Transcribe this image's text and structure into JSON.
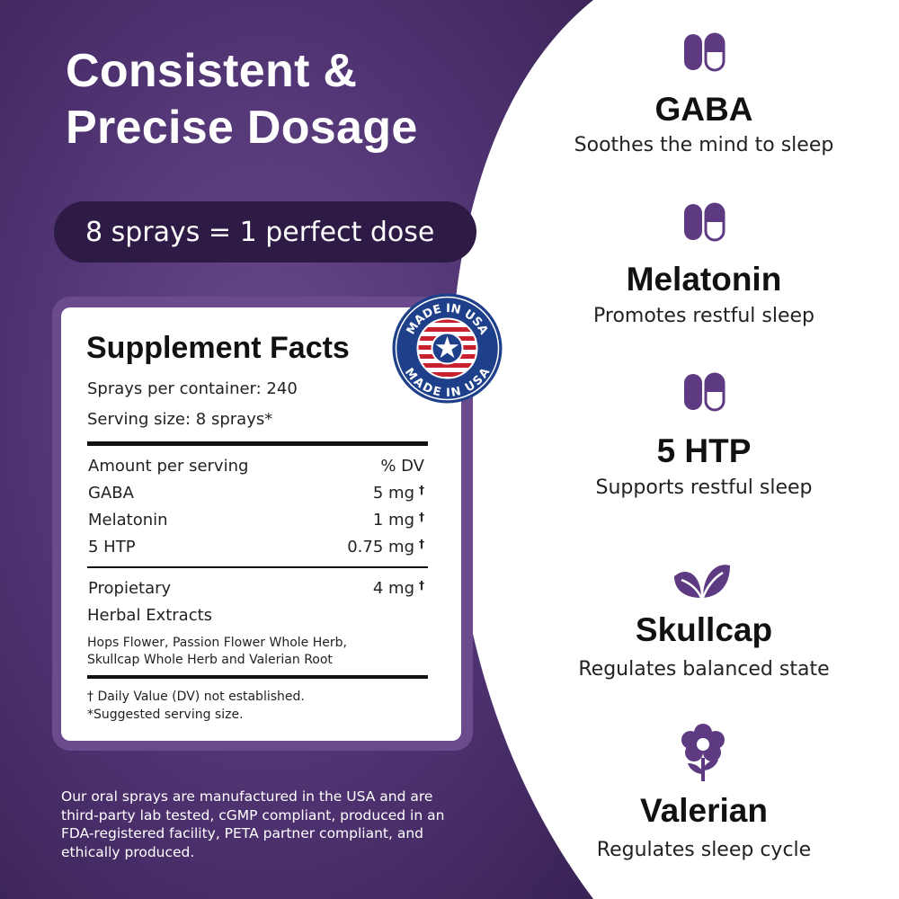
{
  "headline": {
    "line1": "Consistent &",
    "line2": "Precise Dosage"
  },
  "dose_pill": "8 sprays = 1 perfect dose",
  "supplement_facts": {
    "title": "Supplement Facts",
    "sprays_per_container": "Sprays per container: 240",
    "serving_size": "Serving size: 8 sprays*",
    "header": {
      "label": "Amount per serving",
      "value": "% DV"
    },
    "rows": [
      {
        "label": "GABA",
        "value": "5 mg",
        "mark": "†"
      },
      {
        "label": "Melatonin",
        "value": "1 mg",
        "mark": "†"
      },
      {
        "label": "5 HTP",
        "value": "0.75 mg",
        "mark": "†"
      }
    ],
    "proprietary": {
      "line1": "Propietary",
      "line2": "Herbal Extracts",
      "value": "4 mg",
      "mark": "†"
    },
    "extracts_line1": "Hops Flower, Passion Flower Whole Herb,",
    "extracts_line2": "Skullcap Whole Herb and Valerian Root",
    "footnote1": "† Daily Value (DV) not established.",
    "footnote2": "*Suggested serving size."
  },
  "badge_text": "MADE IN USA",
  "bottom_text": {
    "line1": "Our oral sprays are manufactured in the USA and are",
    "line2": "third-party lab tested, cGMP compliant, produced in an",
    "line3": "FDA-registered facility, PETA partner compliant, and",
    "line4": "ethically produced."
  },
  "ingredients": [
    {
      "name": "GABA",
      "desc": "Soothes the mind to sleep",
      "icon": "capsule-icon"
    },
    {
      "name": "Melatonin",
      "desc": "Promotes restful sleep",
      "icon": "capsule-icon"
    },
    {
      "name": "5 HTP",
      "desc": "Supports restful sleep",
      "icon": "capsule-icon"
    },
    {
      "name": "Skullcap",
      "desc": "Regulates balanced state",
      "icon": "leaves-icon"
    },
    {
      "name": "Valerian",
      "desc": "Regulates sleep cycle",
      "icon": "flower-icon"
    }
  ],
  "colors": {
    "purple_dark": "#3a2556",
    "purple": "#5b3a7d",
    "pill": "#2d1a45",
    "icon": "#5e3a82"
  }
}
